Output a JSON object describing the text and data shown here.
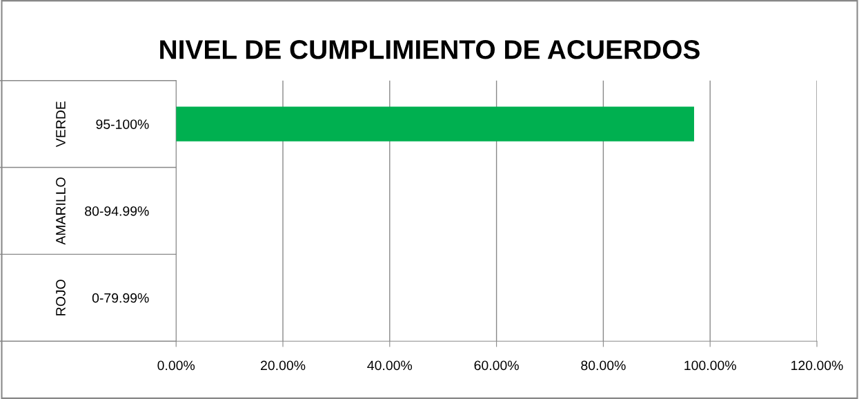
{
  "chart_data": {
    "type": "bar",
    "orientation": "horizontal",
    "title": "NIVEL DE CUMPLIMIENTO DE ACUERDOS",
    "categories": [
      "95-100%",
      "80-94.99%",
      "0-79.99%"
    ],
    "series": [
      {
        "color": "#00b050",
        "values": [
          97,
          0,
          0
        ]
      }
    ],
    "annotations": [
      "VERDE",
      "AMARILLO",
      "ROJO"
    ],
    "xlim": [
      0,
      120
    ],
    "xticks": [
      {
        "value": 0,
        "label": "0.00%"
      },
      {
        "value": 20,
        "label": "20.00%"
      },
      {
        "value": 40,
        "label": "40.00%"
      },
      {
        "value": 60,
        "label": "60.00%"
      },
      {
        "value": 80,
        "label": "80.00%"
      },
      {
        "value": 100,
        "label": "100.00%"
      },
      {
        "value": 120,
        "label": "120.00%"
      }
    ],
    "grid": "x",
    "legend": false
  }
}
